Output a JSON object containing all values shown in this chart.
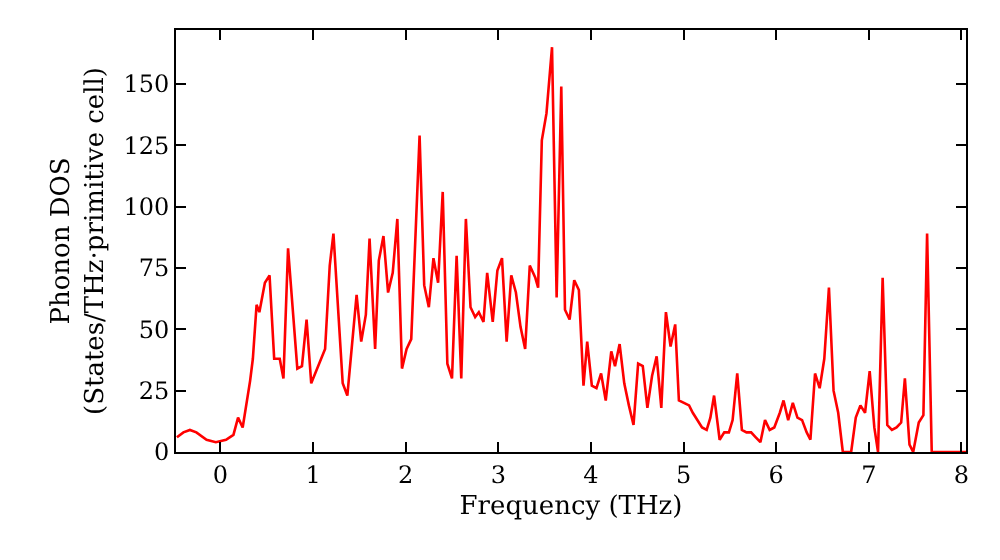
{
  "chart_data": {
    "type": "line",
    "xlabel": "Frequency (THz)",
    "ylabel": "Phonon DOS\n(States/THz·primitive cell)",
    "xlim": [
      -0.48,
      8.05
    ],
    "ylim": [
      0,
      172
    ],
    "xticks": [
      0,
      1,
      2,
      3,
      4,
      5,
      6,
      7,
      8
    ],
    "yticks": [
      0,
      25,
      50,
      75,
      100,
      125,
      150
    ],
    "marker": "none",
    "line_style": "solid",
    "series": [
      {
        "color": "#ff0000",
        "x": [
          -0.47,
          -0.4,
          -0.33,
          -0.26,
          -0.15,
          -0.05,
          0.06,
          0.14,
          0.19,
          0.24,
          0.32,
          0.35,
          0.39,
          0.42,
          0.48,
          0.53,
          0.58,
          0.64,
          0.68,
          0.73,
          0.83,
          0.88,
          0.93,
          0.98,
          1.13,
          1.18,
          1.22,
          1.32,
          1.37,
          1.47,
          1.52,
          1.57,
          1.61,
          1.67,
          1.71,
          1.76,
          1.81,
          1.86,
          1.91,
          1.96,
          2.01,
          2.06,
          2.15,
          2.2,
          2.25,
          2.3,
          2.35,
          2.4,
          2.45,
          2.5,
          2.55,
          2.6,
          2.65,
          2.7,
          2.75,
          2.79,
          2.84,
          2.88,
          2.94,
          2.99,
          3.04,
          3.09,
          3.14,
          3.19,
          3.24,
          3.29,
          3.34,
          3.4,
          3.43,
          3.47,
          3.52,
          3.58,
          3.63,
          3.68,
          3.72,
          3.77,
          3.82,
          3.87,
          3.92,
          3.96,
          4.01,
          4.06,
          4.11,
          4.16,
          4.22,
          4.26,
          4.31,
          4.36,
          4.41,
          4.46,
          4.51,
          4.56,
          4.61,
          4.66,
          4.71,
          4.76,
          4.81,
          4.86,
          4.91,
          4.95,
          5.06,
          5.1,
          5.2,
          5.25,
          5.29,
          5.33,
          5.39,
          5.44,
          5.49,
          5.53,
          5.58,
          5.63,
          5.68,
          5.73,
          5.78,
          5.83,
          5.88,
          5.93,
          5.98,
          6.04,
          6.08,
          6.13,
          6.18,
          6.23,
          6.28,
          6.33,
          6.37,
          6.42,
          6.47,
          6.52,
          6.57,
          6.62,
          6.67,
          6.72,
          6.81,
          6.86,
          6.91,
          6.96,
          7.01,
          7.06,
          7.1,
          7.15,
          7.2,
          7.25,
          7.3,
          7.35,
          7.39,
          7.44,
          7.48,
          7.54,
          7.59,
          7.63,
          7.68,
          8.05
        ],
        "values": [
          6,
          8,
          9,
          8,
          5,
          4,
          5,
          7,
          14,
          10,
          29,
          38,
          60,
          57,
          69,
          72,
          38,
          38,
          30,
          83,
          34,
          35,
          54,
          28,
          42,
          76,
          89,
          28,
          23,
          64,
          45,
          56,
          87,
          42,
          78,
          88,
          65,
          73,
          95,
          34,
          42,
          46,
          129,
          68,
          59,
          79,
          69,
          106,
          36,
          30,
          80,
          30,
          95,
          59,
          55,
          57,
          53,
          73,
          53,
          74,
          79,
          45,
          72,
          65,
          51,
          42,
          76,
          71,
          67,
          127,
          138,
          165,
          63,
          149,
          58,
          54,
          70,
          66,
          27,
          45,
          27,
          26,
          32,
          21,
          41,
          35,
          44,
          28,
          19,
          11,
          36,
          35,
          18,
          31,
          39,
          18,
          57,
          43,
          52,
          21,
          19,
          16,
          10,
          9,
          14,
          23,
          5,
          8,
          8,
          13,
          32,
          9,
          8,
          8,
          6,
          4,
          13,
          9,
          10,
          16,
          21,
          13,
          20,
          14,
          13,
          8,
          5,
          32,
          26,
          38,
          67,
          25,
          16,
          0,
          0,
          14,
          19,
          16,
          33,
          10,
          0,
          71,
          11,
          9,
          10,
          12,
          30,
          3,
          0,
          12,
          15,
          89,
          0,
          0
        ]
      }
    ]
  }
}
